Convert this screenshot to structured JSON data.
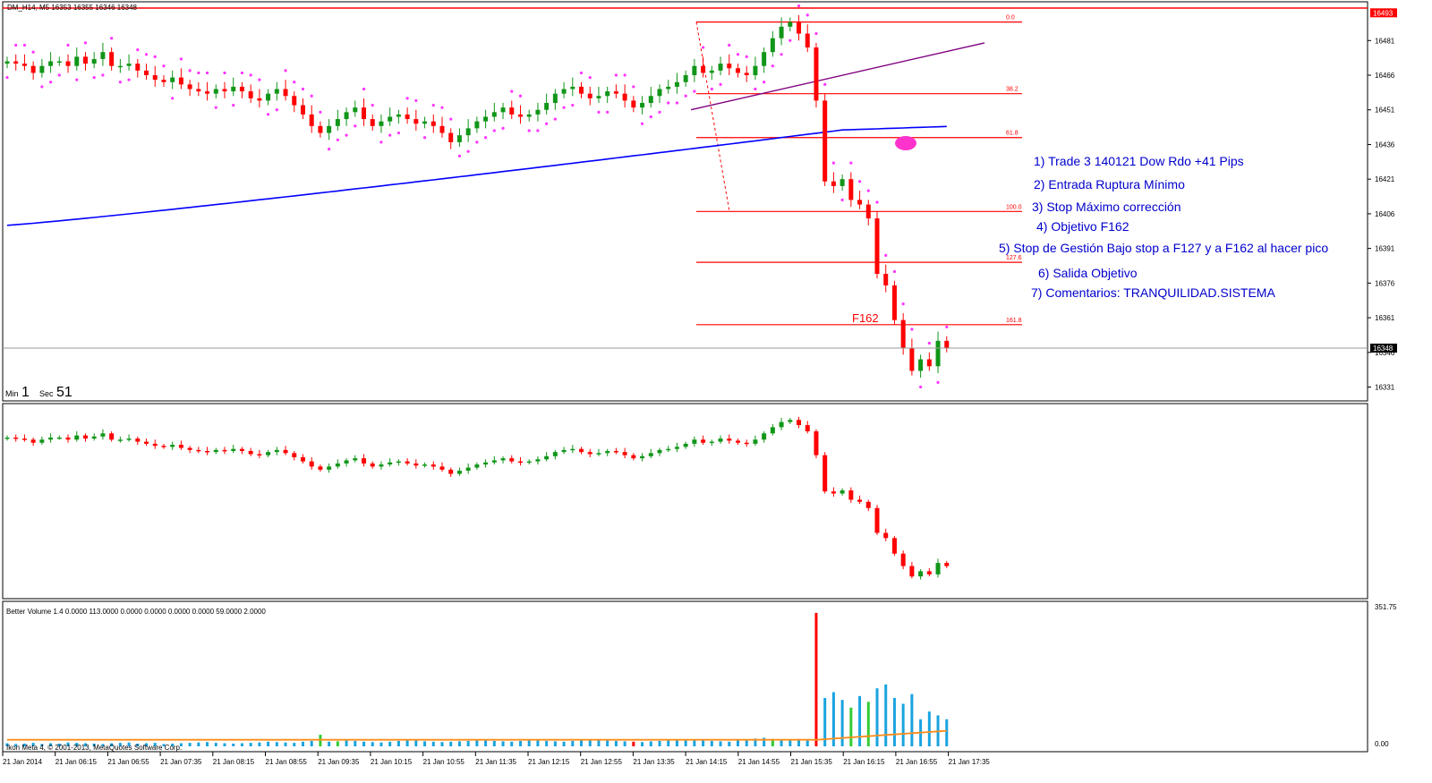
{
  "window": {
    "symbol_header": "DM_H14, M5  16353 16355 16346 16348",
    "timer_min_label": "Min",
    "timer_min_value": "1",
    "timer_sec_label": "Sec",
    "timer_sec_value": "51",
    "footer_copyright": "Ikon Meta 4, © 2001-2013, MetaQuotes Software Corp.",
    "volume_indicator_label": "Better Volume 1.4 0.0000 113.0000 0.0000 0.0000 0.0000 0.0000 59.0000 2.0000"
  },
  "colors": {
    "bull": "#109618",
    "bear": "#ff0000",
    "psar": "#ff33ff",
    "ma": "#0000ff",
    "fib": "#ff0000",
    "trendline": "#800080",
    "volume_blue": "#1aa3e0",
    "volume_green": "#33cc33",
    "volume_red": "#ff0000",
    "volume_avg": "#ff8c1a",
    "annotation_text": "#0000cc"
  },
  "annotations": [
    "1) Trade 3 140121 Dow Rdo +41 Pips",
    "2) Entrada Ruptura Mínimo",
    "3) Stop Máximo corrección",
    "4) Objetivo F162",
    "5) Stop de Gestión Bajo stop a F127 y a F162 al hacer pico",
    "6) Salida Objetivo",
    "7) Comentarios: TRANQUILIDAD.SISTEMA"
  ],
  "chart_data": [
    {
      "type": "candlestick",
      "pane": "price",
      "price_axis_ticks": [
        "16481",
        "16466",
        "16451",
        "16436",
        "16421",
        "16406",
        "16391",
        "16376",
        "16361",
        "16346",
        "16331"
      ],
      "price_axis_highlight": "16493",
      "current_price_label": "16348",
      "ylim": [
        16325,
        16497
      ],
      "time_axis_labels": [
        "21 Jan 2014",
        "21 Jan 06:15",
        "21 Jan 06:55",
        "21 Jan 07:35",
        "21 Jan 08:15",
        "21 Jan 08:55",
        "21 Jan 09:35",
        "21 Jan 10:15",
        "21 Jan 10:55",
        "21 Jan 11:35",
        "21 Jan 12:15",
        "21 Jan 12:55",
        "21 Jan 13:35",
        "21 Jan 14:15",
        "21 Jan 14:55",
        "21 Jan 15:35",
        "21 Jan 16:15",
        "21 Jan 16:55",
        "21 Jan 17:35"
      ],
      "fib_levels": [
        {
          "label": "0.0",
          "price": 16489
        },
        {
          "label": "38.2",
          "price": 16458
        },
        {
          "label": "61.8",
          "price": 16439
        },
        {
          "label": "100.0",
          "price": 16407
        },
        {
          "label": "127.6",
          "price": 16385
        },
        {
          "label": "161.8",
          "price": 16358
        }
      ],
      "fib_label_text": "F162",
      "close_series_desc": "5-minute closes, left to right",
      "closes": [
        16472,
        16471,
        16470,
        16467,
        16470,
        16472,
        16472,
        16470,
        16474,
        16471,
        16473,
        16476,
        16470,
        16470,
        16471,
        16468,
        16466,
        16464,
        16463,
        16465,
        16462,
        16460,
        16459,
        16458,
        16460,
        16459,
        16461,
        16459,
        16456,
        16455,
        16458,
        16460,
        16457,
        16453,
        16449,
        16444,
        16441,
        16444,
        16447,
        16450,
        16452,
        16447,
        16444,
        16446,
        16448,
        16449,
        16447,
        16445,
        16446,
        16444,
        16441,
        16437,
        16440,
        16443,
        16446,
        16448,
        16450,
        16452,
        16449,
        16448,
        16449,
        16451,
        16454,
        16458,
        16460,
        16461,
        16458,
        16456,
        16457,
        16459,
        16458,
        16455,
        16452,
        16454,
        16457,
        16460,
        16461,
        16463,
        16466,
        16470,
        16467,
        16468,
        16471,
        16469,
        16467,
        16466,
        16470,
        16476,
        16482,
        16487,
        16489,
        16484,
        16478,
        16455,
        16420,
        16418,
        16421,
        16412,
        16410,
        16404,
        16380,
        16375,
        16360,
        16348,
        16338,
        16343,
        16340,
        16351,
        16348
      ],
      "sma_desc": "long moving average (blue)",
      "sma_start": 16401,
      "sma_end": 16448,
      "trendline": {
        "from_price": 16451,
        "to_price": 16480
      }
    },
    {
      "type": "candlestick",
      "pane": "oscillator",
      "desc": "secondary pane mirroring price candles"
    },
    {
      "type": "bar",
      "pane": "volume",
      "axis_ticks": [
        "351.75",
        "0.00"
      ],
      "ylim": [
        0,
        351.75
      ],
      "note": "volume histogram with moving average line",
      "volumes": [
        8,
        6,
        7,
        9,
        6,
        8,
        7,
        10,
        9,
        8,
        7,
        6,
        8,
        9,
        10,
        7,
        8,
        9,
        6,
        7,
        8,
        9,
        10,
        11,
        9,
        8,
        7,
        8,
        9,
        10,
        12,
        11,
        10,
        9,
        12,
        14,
        30,
        12,
        13,
        16,
        14,
        12,
        11,
        10,
        12,
        14,
        16,
        15,
        13,
        12,
        11,
        12,
        13,
        14,
        15,
        16,
        14,
        13,
        12,
        14,
        15,
        16,
        14,
        13,
        12,
        14,
        15,
        17,
        16,
        15,
        14,
        13,
        12,
        11,
        13,
        14,
        16,
        18,
        17,
        16,
        15,
        14,
        13,
        12,
        16,
        18,
        20,
        22,
        19,
        17,
        18,
        19,
        15,
        345,
        125,
        140,
        120,
        100,
        130,
        115,
        150,
        160,
        125,
        110,
        135,
        70,
        90,
        80,
        70
      ],
      "volume_colors": "b,b,b,b,b,b,b,b,b,b,b,b,b,b,b,b,b,b,b,b,b,b,b,b,b,b,b,b,b,b,b,b,b,b,b,b,g,b,g,b,b,b,b,b,b,b,b,b,b,b,b,b,b,b,b,b,b,b,b,b,b,b,b,b,b,b,b,b,b,b,b,b,r,b,b,b,b,b,b,b,b,b,b,b,b,b,b,b,g,b,b,b,b,r,b,b,b,g,b,g,b,b,b,b,b,b,b,b,b"
    }
  ]
}
